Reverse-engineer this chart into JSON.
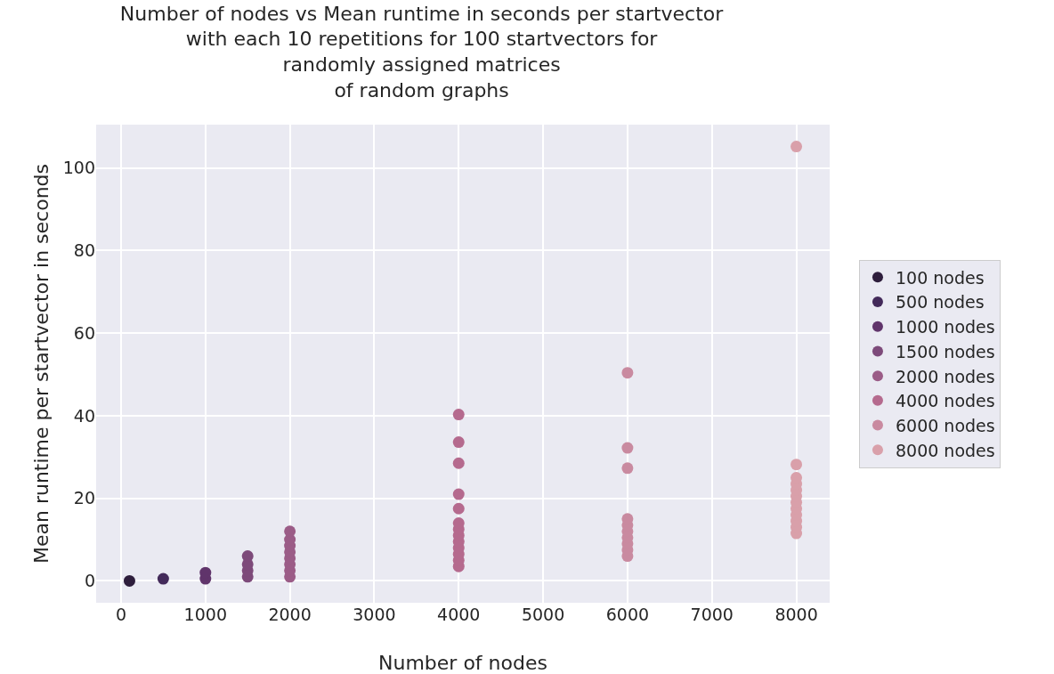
{
  "chart_data": {
    "type": "scatter",
    "title": "Number of nodes vs Mean runtime in seconds per startvector\nwith each 10 repetitions for 100 startvectors for\nrandomly assigned matrices\nof random graphs",
    "xlabel": "Number of nodes",
    "ylabel": "Mean runtime per startvector in seconds",
    "xlim": [
      -295,
      8395
    ],
    "xticks": [
      0,
      1000,
      2000,
      3000,
      4000,
      5000,
      6000,
      7000,
      8000
    ],
    "ylim": [
      -5.3,
      110.5
    ],
    "yticks": [
      0,
      20,
      40,
      60,
      80,
      100
    ],
    "grid": true,
    "legend": "right",
    "marker": "circle",
    "series": [
      {
        "name": "100 nodes",
        "color": "#2e1e3c",
        "x": [
          100
        ],
        "values": [
          0
        ]
      },
      {
        "name": "500 nodes",
        "color": "#432a5a",
        "x": [
          500
        ],
        "values": [
          0.5
        ]
      },
      {
        "name": "1000 nodes",
        "color": "#60346b",
        "x": [
          1000,
          1000
        ],
        "values": [
          0.5,
          2
        ]
      },
      {
        "name": "1500 nodes",
        "color": "#7d4a7a",
        "x": [
          1500,
          1500,
          1500,
          1500
        ],
        "values": [
          1,
          2.5,
          4,
          6
        ]
      },
      {
        "name": "2000 nodes",
        "color": "#9b5c87",
        "x": [
          2000,
          2000,
          2000,
          2000,
          2000,
          2000,
          2000,
          2000
        ],
        "values": [
          1,
          2.5,
          4,
          5.5,
          7,
          8.5,
          10,
          12
        ]
      },
      {
        "name": "4000 nodes",
        "color": "#b56a8e",
        "x": [
          4000,
          4000,
          4000,
          4000,
          4000,
          4000,
          4000,
          4000,
          4000,
          4000,
          4000,
          4000,
          4000
        ],
        "values": [
          3.5,
          5,
          6.5,
          8,
          9.5,
          11,
          12.5,
          14,
          17.5,
          21,
          28.5,
          33.6,
          40.3
        ]
      },
      {
        "name": "6000 nodes",
        "color": "#c98aa0",
        "x": [
          6000,
          6000,
          6000,
          6000,
          6000,
          6000,
          6000,
          6000,
          6000,
          6000
        ],
        "values": [
          6,
          7.5,
          9,
          10.5,
          12,
          13.5,
          15,
          27.3,
          32.2,
          50.4
        ]
      },
      {
        "name": "8000 nodes",
        "color": "#d9a0aa",
        "x": [
          8000,
          8000,
          8000,
          8000,
          8000,
          8000,
          8000,
          8000,
          8000,
          8000,
          8000,
          8000
        ],
        "values": [
          11.5,
          13,
          14.5,
          16,
          17.5,
          19,
          20.5,
          22,
          23.5,
          25,
          28.2,
          105.2
        ]
      }
    ]
  }
}
